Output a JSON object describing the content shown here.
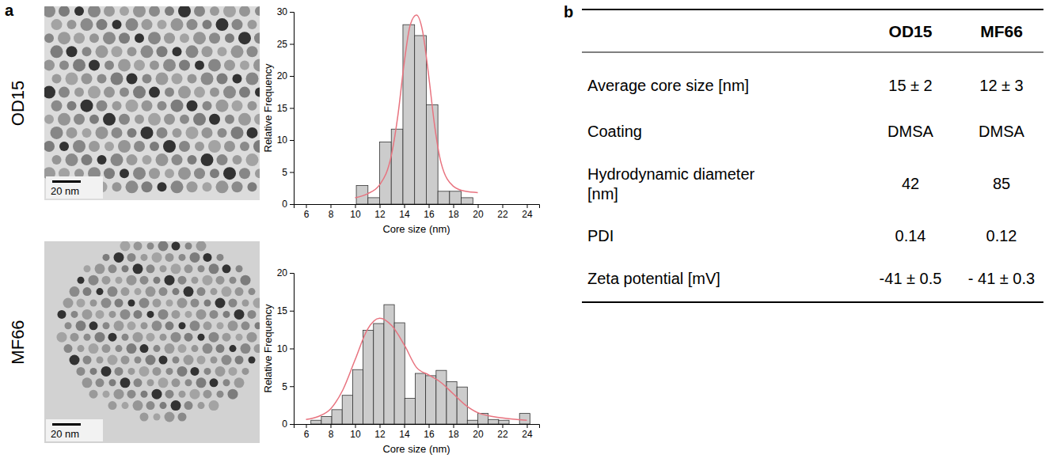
{
  "panels": {
    "a": {
      "label": "a",
      "rows": [
        {
          "name": "OD15",
          "scale_bar": "20 nm"
        },
        {
          "name": "MF66",
          "scale_bar": "20 nm"
        }
      ]
    },
    "b": {
      "label": "b"
    }
  },
  "chart_data": [
    {
      "type": "histogram",
      "xlabel": "Core size (nm)",
      "ylabel": "Relative Frequency",
      "bins": [
        10.1,
        11.05,
        12.0,
        12.95,
        13.9,
        14.85,
        15.8,
        16.75,
        17.7,
        18.65,
        19.6
      ],
      "counts": [
        2.9,
        1.0,
        9.7,
        11.7,
        28.0,
        26.3,
        15.5,
        2.0,
        2.0,
        1.0
      ],
      "color": "#cccccc",
      "xlim": [
        5,
        25
      ],
      "xticks": [
        6,
        8,
        10,
        12,
        14,
        16,
        18,
        20,
        22,
        24
      ],
      "ylim": [
        0,
        30
      ],
      "yticks": [
        0,
        5,
        10,
        15,
        20,
        25,
        30
      ],
      "fit": {
        "type": "line",
        "color": "#e8737f",
        "x": [
          10,
          11,
          12,
          13,
          13.5,
          14,
          14.5,
          15,
          15.5,
          16,
          16.5,
          17,
          18,
          19,
          20
        ],
        "values": [
          1.0,
          1.6,
          3.0,
          8.0,
          14.0,
          22.0,
          28.0,
          29.5,
          27.0,
          20.0,
          12.0,
          6.5,
          2.8,
          2.0,
          1.8
        ]
      }
    },
    {
      "type": "histogram",
      "xlabel": "Core size (nm)",
      "ylabel": "Relative Frequency",
      "bins": [
        6.4,
        7.25,
        8.1,
        8.95,
        9.8,
        10.65,
        11.5,
        12.35,
        13.2,
        14.05,
        14.9,
        15.75,
        16.6,
        17.45,
        18.3,
        19.15,
        20.0,
        20.85,
        21.7,
        22.55,
        23.4,
        24.25
      ],
      "counts": [
        0.5,
        1.0,
        1.9,
        3.8,
        7.2,
        12.4,
        13.3,
        15.8,
        13.4,
        3.4,
        6.7,
        6.4,
        7.1,
        5.6,
        4.9,
        0.5,
        1.4,
        0.6,
        0.5,
        0,
        1.4
      ],
      "color": "#cccccc",
      "xlim": [
        5,
        25
      ],
      "xticks": [
        6,
        8,
        10,
        12,
        14,
        16,
        18,
        20,
        22,
        24
      ],
      "ylim": [
        0,
        20
      ],
      "yticks": [
        0,
        5,
        10,
        15,
        20
      ],
      "fit": {
        "type": "line",
        "color": "#e8737f",
        "x": [
          6,
          7,
          8,
          9,
          10,
          11,
          12,
          13,
          14,
          15,
          16,
          17,
          18,
          19,
          20,
          22,
          24
        ],
        "values": [
          0.6,
          1.0,
          2.0,
          4.5,
          8.5,
          12.5,
          14.0,
          13.0,
          10.5,
          7.5,
          6.5,
          5.5,
          4.0,
          2.5,
          1.5,
          0.8,
          0.5
        ]
      }
    }
  ],
  "table": {
    "columns": [
      "OD15",
      "MF66"
    ],
    "rows": [
      {
        "label": "Average core size [nm]",
        "cells": [
          "15 ± 2",
          "12 ± 3"
        ]
      },
      {
        "label": "Coating",
        "cells": [
          "DMSA",
          "DMSA"
        ]
      },
      {
        "label": "Hydrodynamic diameter [nm]",
        "cells": [
          "42",
          "85"
        ]
      },
      {
        "label": "PDI",
        "cells": [
          "0.14",
          "0.12"
        ]
      },
      {
        "label": "Zeta potential [mV]",
        "cells": [
          "-41 ± 0.5",
          "- 41 ± 0.3"
        ]
      }
    ]
  }
}
